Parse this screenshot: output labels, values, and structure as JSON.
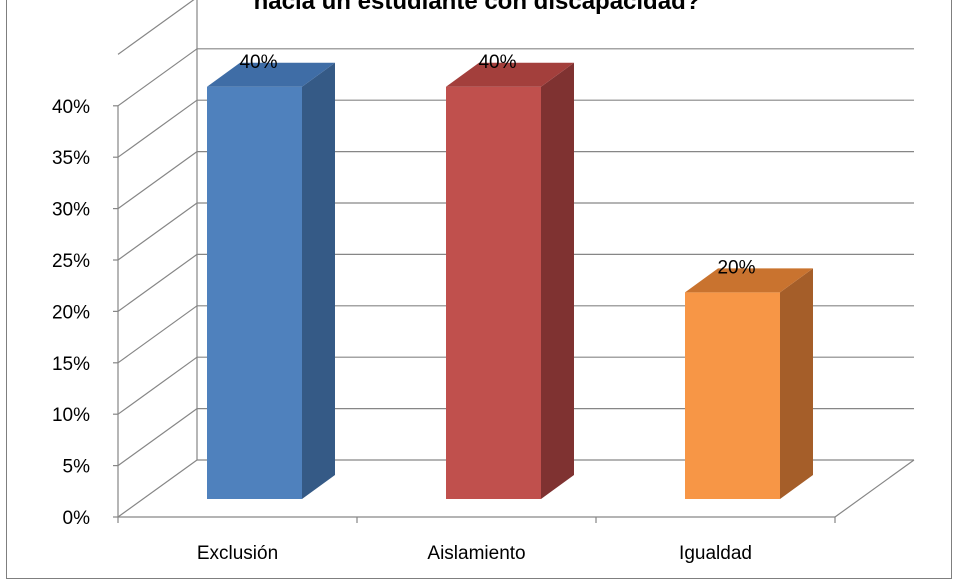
{
  "chart_data": {
    "type": "bar",
    "title": "hacia un estudiante con discapacidad?",
    "categories": [
      "Exclusión",
      "Aislamiento",
      "Igualdad"
    ],
    "values": [
      40,
      40,
      20
    ],
    "data_labels": [
      "40%",
      "40%",
      "20%"
    ],
    "ylim": [
      0,
      40
    ],
    "yticks": [
      "0%",
      "5%",
      "10%",
      "15%",
      "20%",
      "25%",
      "30%",
      "35%",
      "40%"
    ],
    "xlabel": "",
    "ylabel": "",
    "grid": true,
    "style": "3d-column",
    "colors": [
      {
        "front": "#4f81bd",
        "side": "#355a86",
        "top": "#3f6da6"
      },
      {
        "front": "#c0504d",
        "side": "#7f3231",
        "top": "#a33f3c"
      },
      {
        "front": "#f79646",
        "side": "#a55e29",
        "top": "#c9732f"
      }
    ]
  }
}
